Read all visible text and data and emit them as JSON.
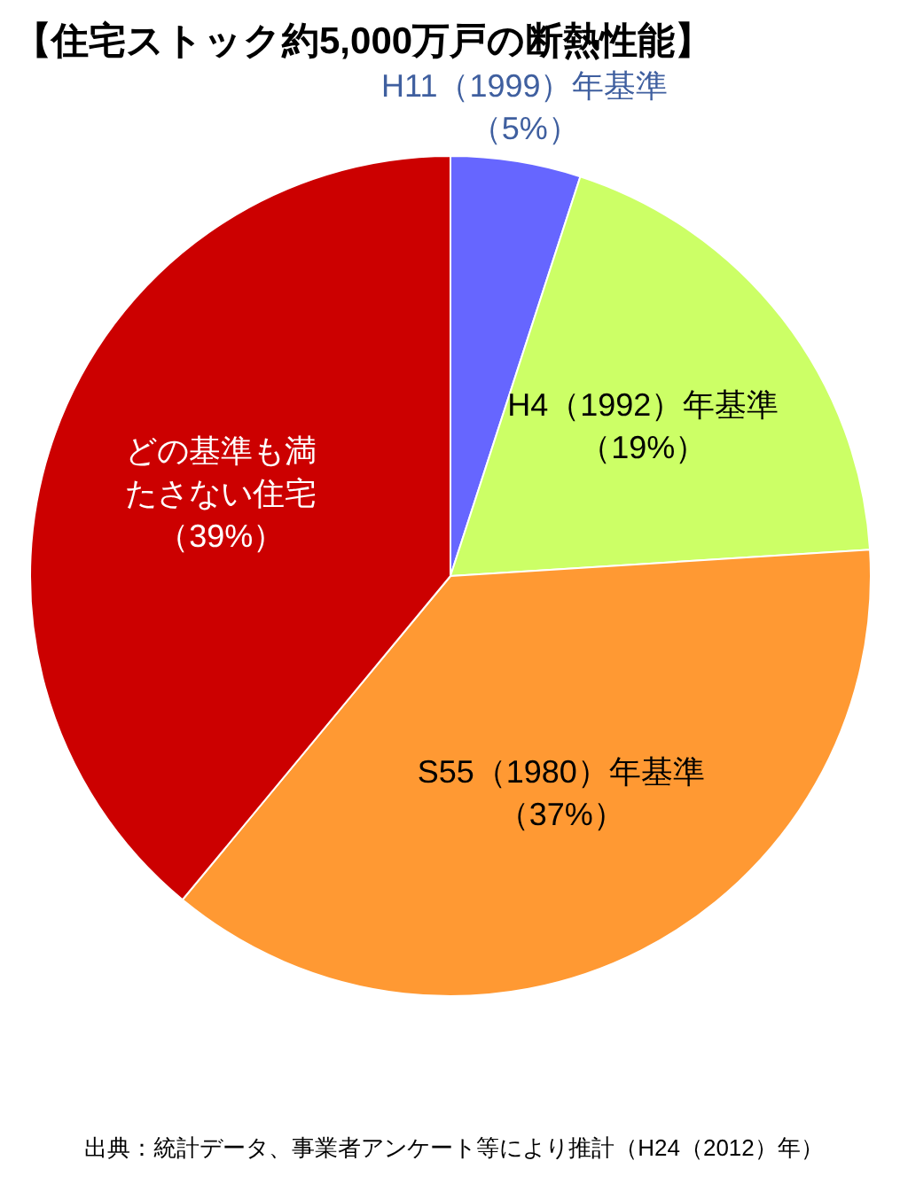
{
  "chart_data": {
    "type": "pie",
    "title": "【住宅ストック約5,000万戸の断熱性能】",
    "categories": [
      "H11（1999）年基準",
      "H4（1992）年基準",
      "S55（1980）年基準",
      "どの基準も満たさない住宅"
    ],
    "values": [
      5,
      19,
      37,
      39
    ],
    "value_labels": [
      "（5%）",
      "（19%）",
      "（37%）",
      "（39%）"
    ],
    "colors": [
      "#6666ff",
      "#ccff66",
      "#ff9933",
      "#cc0000"
    ],
    "annotations": [
      "出典：統計データ、事業者アンケート等により推計（H24（2012）年）"
    ]
  }
}
